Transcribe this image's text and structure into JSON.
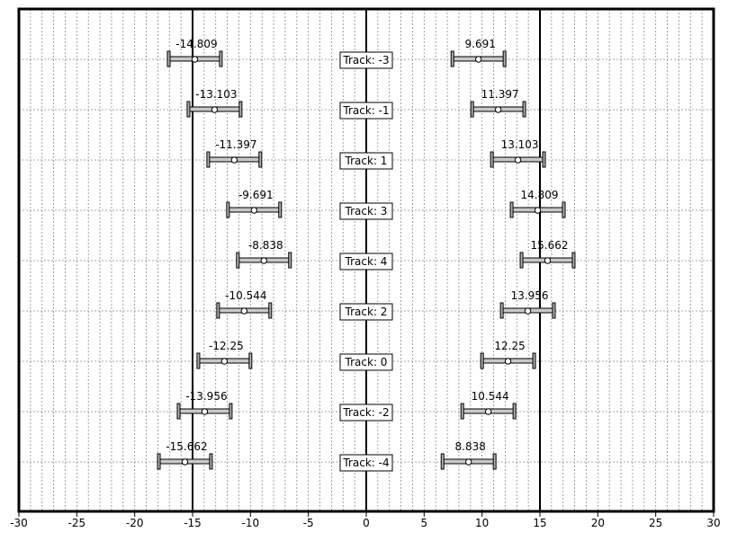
{
  "chart_data": {
    "type": "scatter",
    "title": "",
    "xlabel": "",
    "ylabel": "",
    "xlim": [
      -30,
      30
    ],
    "grid": true,
    "x_ticks": [
      "-30",
      "-25",
      "-20",
      "-15",
      "-10",
      "-5",
      "0",
      "5",
      "10",
      "15",
      "20",
      "25",
      "30"
    ],
    "reference_lines": [
      -15,
      0,
      15
    ],
    "error_half_width": 2.25,
    "tracks": [
      {
        "label": "Track: -3",
        "left": {
          "value": -14.809,
          "label": "-14.809"
        },
        "right": {
          "value": 9.691,
          "label": "9.691"
        }
      },
      {
        "label": "Track: -1",
        "left": {
          "value": -13.103,
          "label": "-13.103"
        },
        "right": {
          "value": 11.397,
          "label": "11.397"
        }
      },
      {
        "label": "Track: 1",
        "left": {
          "value": -11.397,
          "label": "-11.397"
        },
        "right": {
          "value": 13.103,
          "label": "13.103"
        }
      },
      {
        "label": "Track: 3",
        "left": {
          "value": -9.691,
          "label": "-9.691"
        },
        "right": {
          "value": 14.809,
          "label": "14.809"
        }
      },
      {
        "label": "Track: 4",
        "left": {
          "value": -8.838,
          "label": "-8.838"
        },
        "right": {
          "value": 15.662,
          "label": "15.662"
        }
      },
      {
        "label": "Track: 2",
        "left": {
          "value": -10.544,
          "label": "-10.544"
        },
        "right": {
          "value": 13.956,
          "label": "13.956"
        }
      },
      {
        "label": "Track: 0",
        "left": {
          "value": -12.25,
          "label": "-12.25"
        },
        "right": {
          "value": 12.25,
          "label": "12.25"
        }
      },
      {
        "label": "Track: -2",
        "left": {
          "value": -13.956,
          "label": "-13.956"
        },
        "right": {
          "value": 10.544,
          "label": "10.544"
        }
      },
      {
        "label": "Track: -4",
        "left": {
          "value": -15.662,
          "label": "-15.662"
        },
        "right": {
          "value": 8.838,
          "label": "8.838"
        }
      }
    ]
  }
}
